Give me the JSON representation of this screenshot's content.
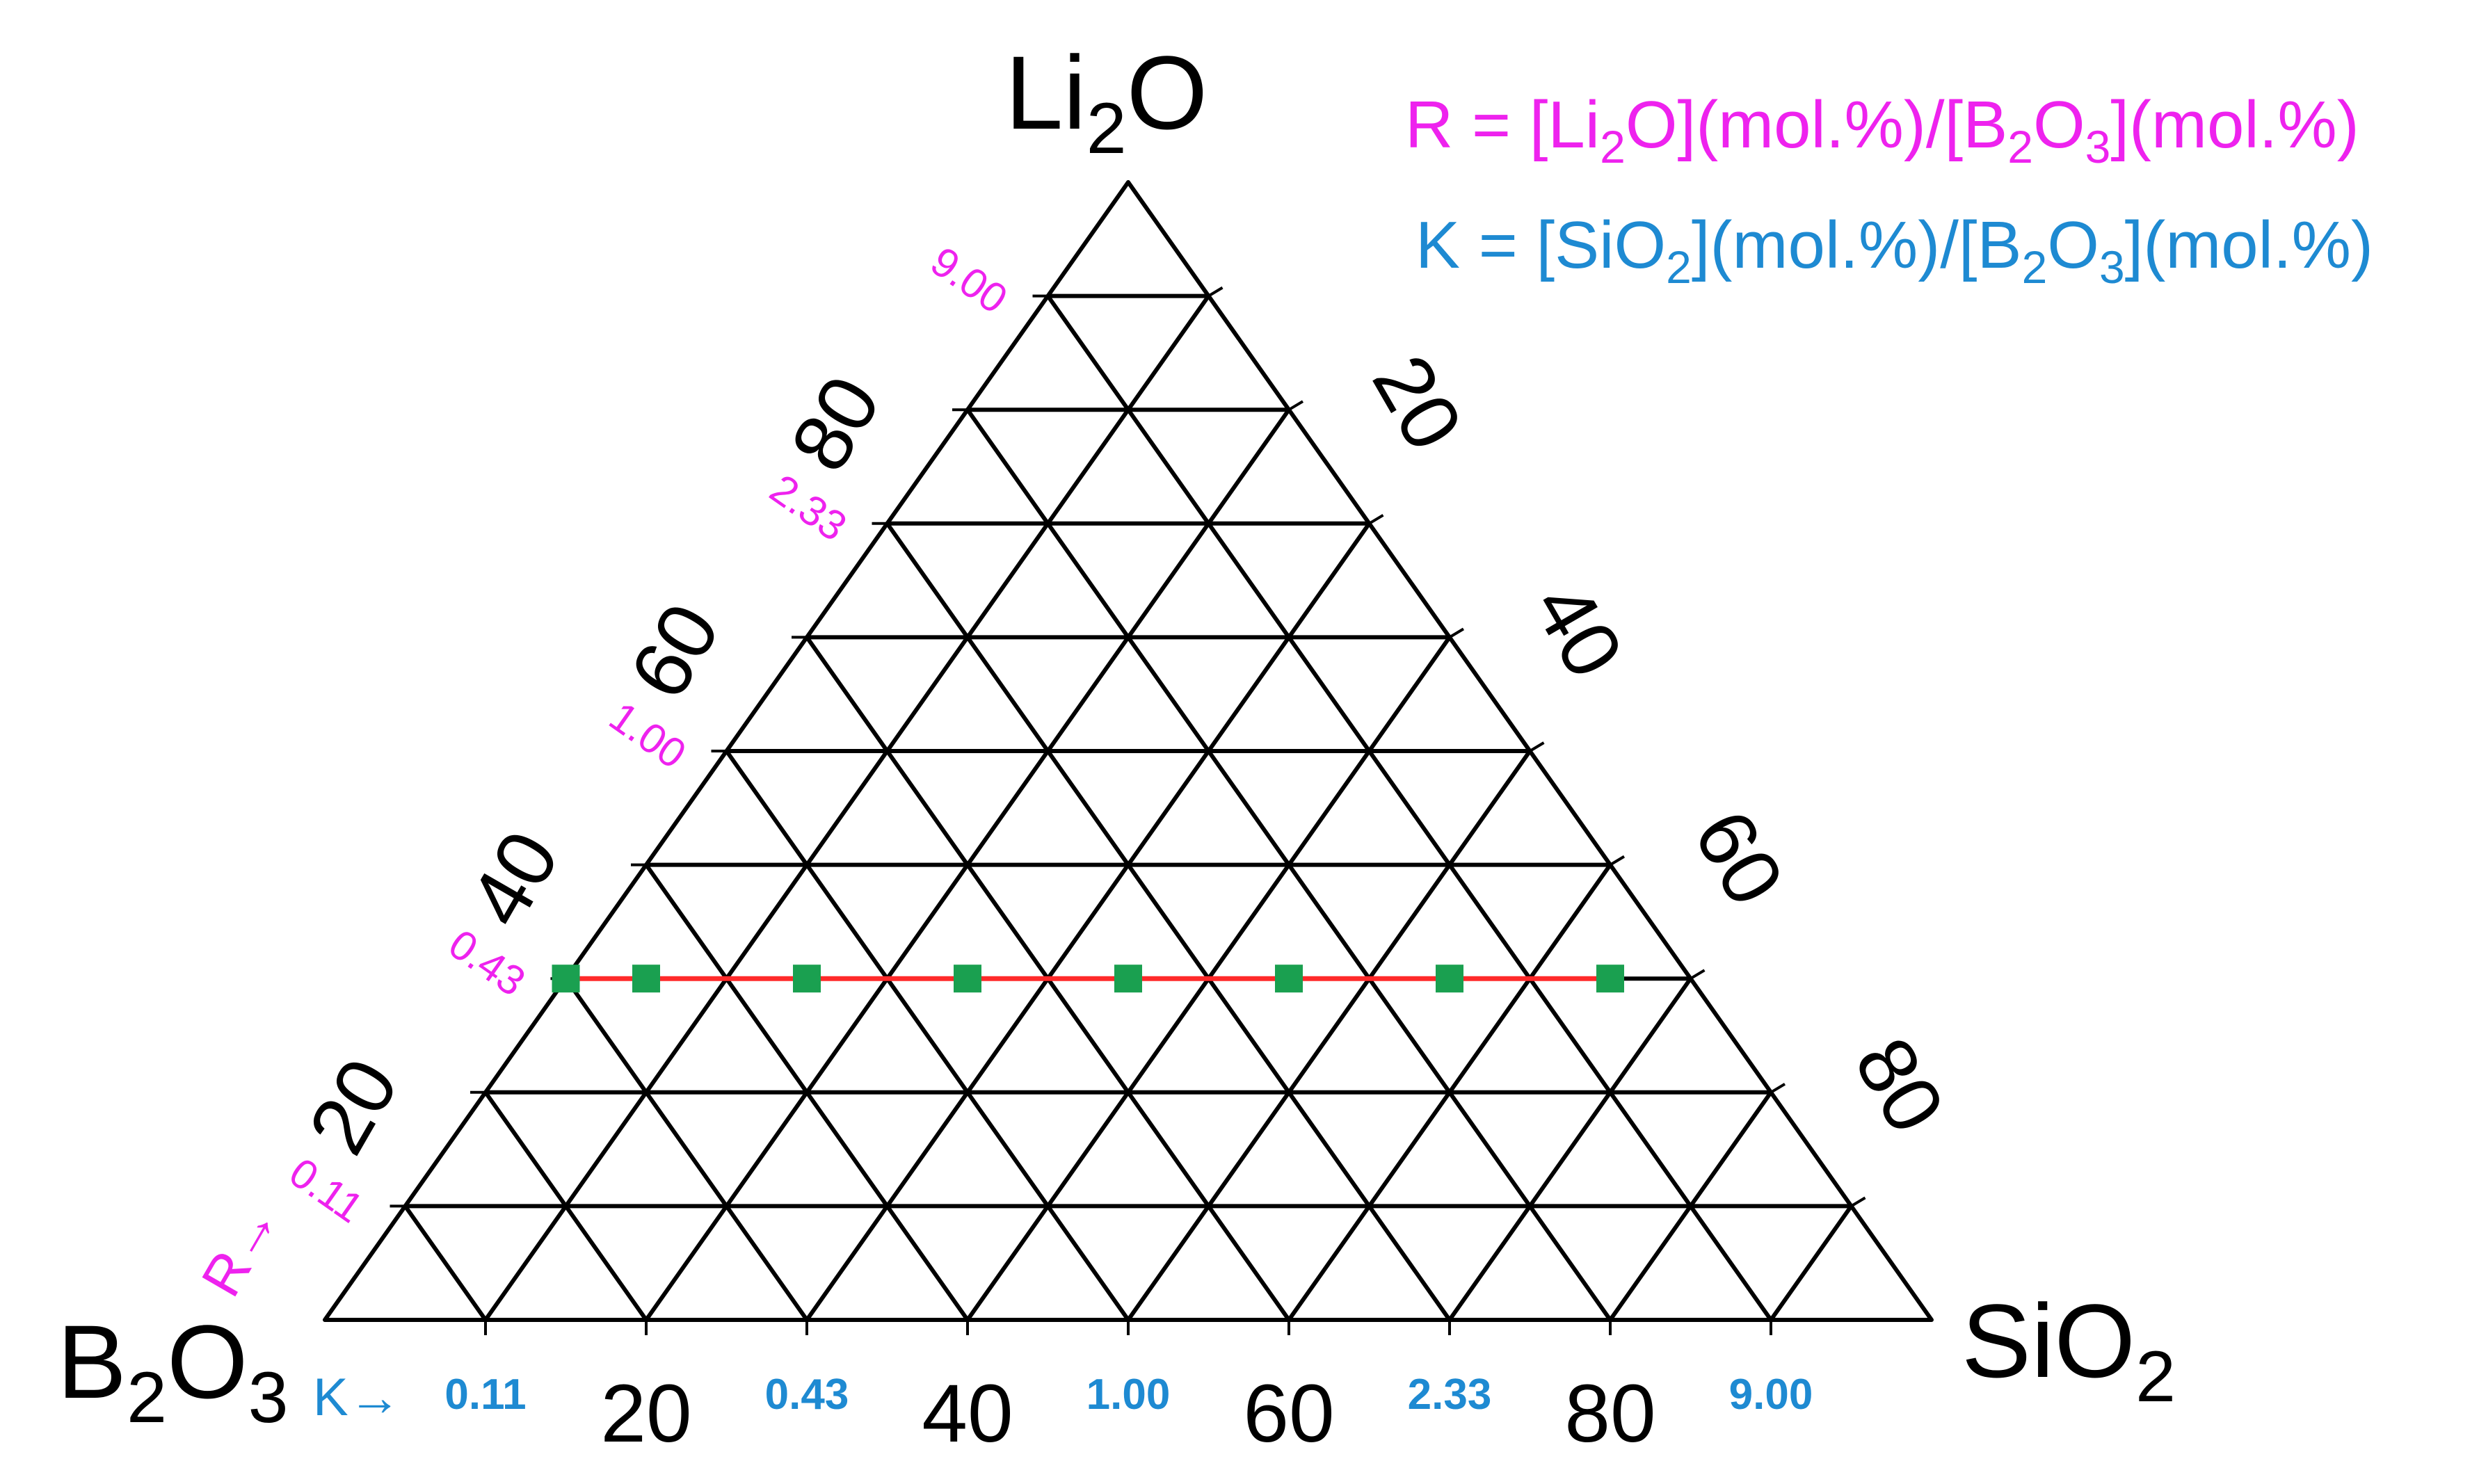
{
  "vertices": {
    "top": {
      "main": "Li",
      "sub": "2",
      "tail": "O"
    },
    "left": {
      "pre": "B",
      "sub1": "2",
      "mid": "O",
      "sub2": "3"
    },
    "right": {
      "main": "SiO",
      "sub": "2"
    }
  },
  "legend": {
    "r": {
      "p1": "R = [Li",
      "s1": "2",
      "p2": "O](mol.%)/[B",
      "s2": "2",
      "p3": "O",
      "s3": "3",
      "p4": "](mol.%)"
    },
    "k": {
      "p1": "K = [SiO",
      "s1": "2",
      "p2": "](mol.%)/[B",
      "s2": "2",
      "p3": "O",
      "s3": "3",
      "p4": "](mol.%)"
    }
  },
  "axes": {
    "bottom_ticks": [
      "20",
      "40",
      "60",
      "80"
    ],
    "left_ticks": [
      "20",
      "40",
      "60",
      "80"
    ],
    "right_ticks": [
      "20",
      "40",
      "60",
      "80"
    ]
  },
  "r_scale": {
    "arrow_label": "R→",
    "values": [
      "0.11",
      "0.43",
      "1.00",
      "2.33",
      "9.00"
    ]
  },
  "k_scale": {
    "arrow_label": "K→",
    "values": [
      "0.11",
      "0.43",
      "1.00",
      "2.33",
      "9.00"
    ]
  },
  "colors": {
    "grid": "#000000",
    "composition_line": "#ff2a2a",
    "points": "#1aa050",
    "r_color": "#ee22ee",
    "k_color": "#1e8ad2"
  },
  "chart_data": {
    "type": "scatter",
    "components": [
      "Li2O",
      "B2O3",
      "SiO2"
    ],
    "series": [
      {
        "li2o": [
          30,
          30,
          30,
          30,
          30,
          30,
          30,
          30
        ],
        "sio2": [
          0,
          5,
          15,
          25,
          35,
          45,
          55,
          65
        ],
        "b2o3": [
          70,
          65,
          55,
          45,
          35,
          25,
          15,
          5
        ]
      }
    ],
    "grid_step": 10,
    "range": [
      0,
      100
    ]
  }
}
